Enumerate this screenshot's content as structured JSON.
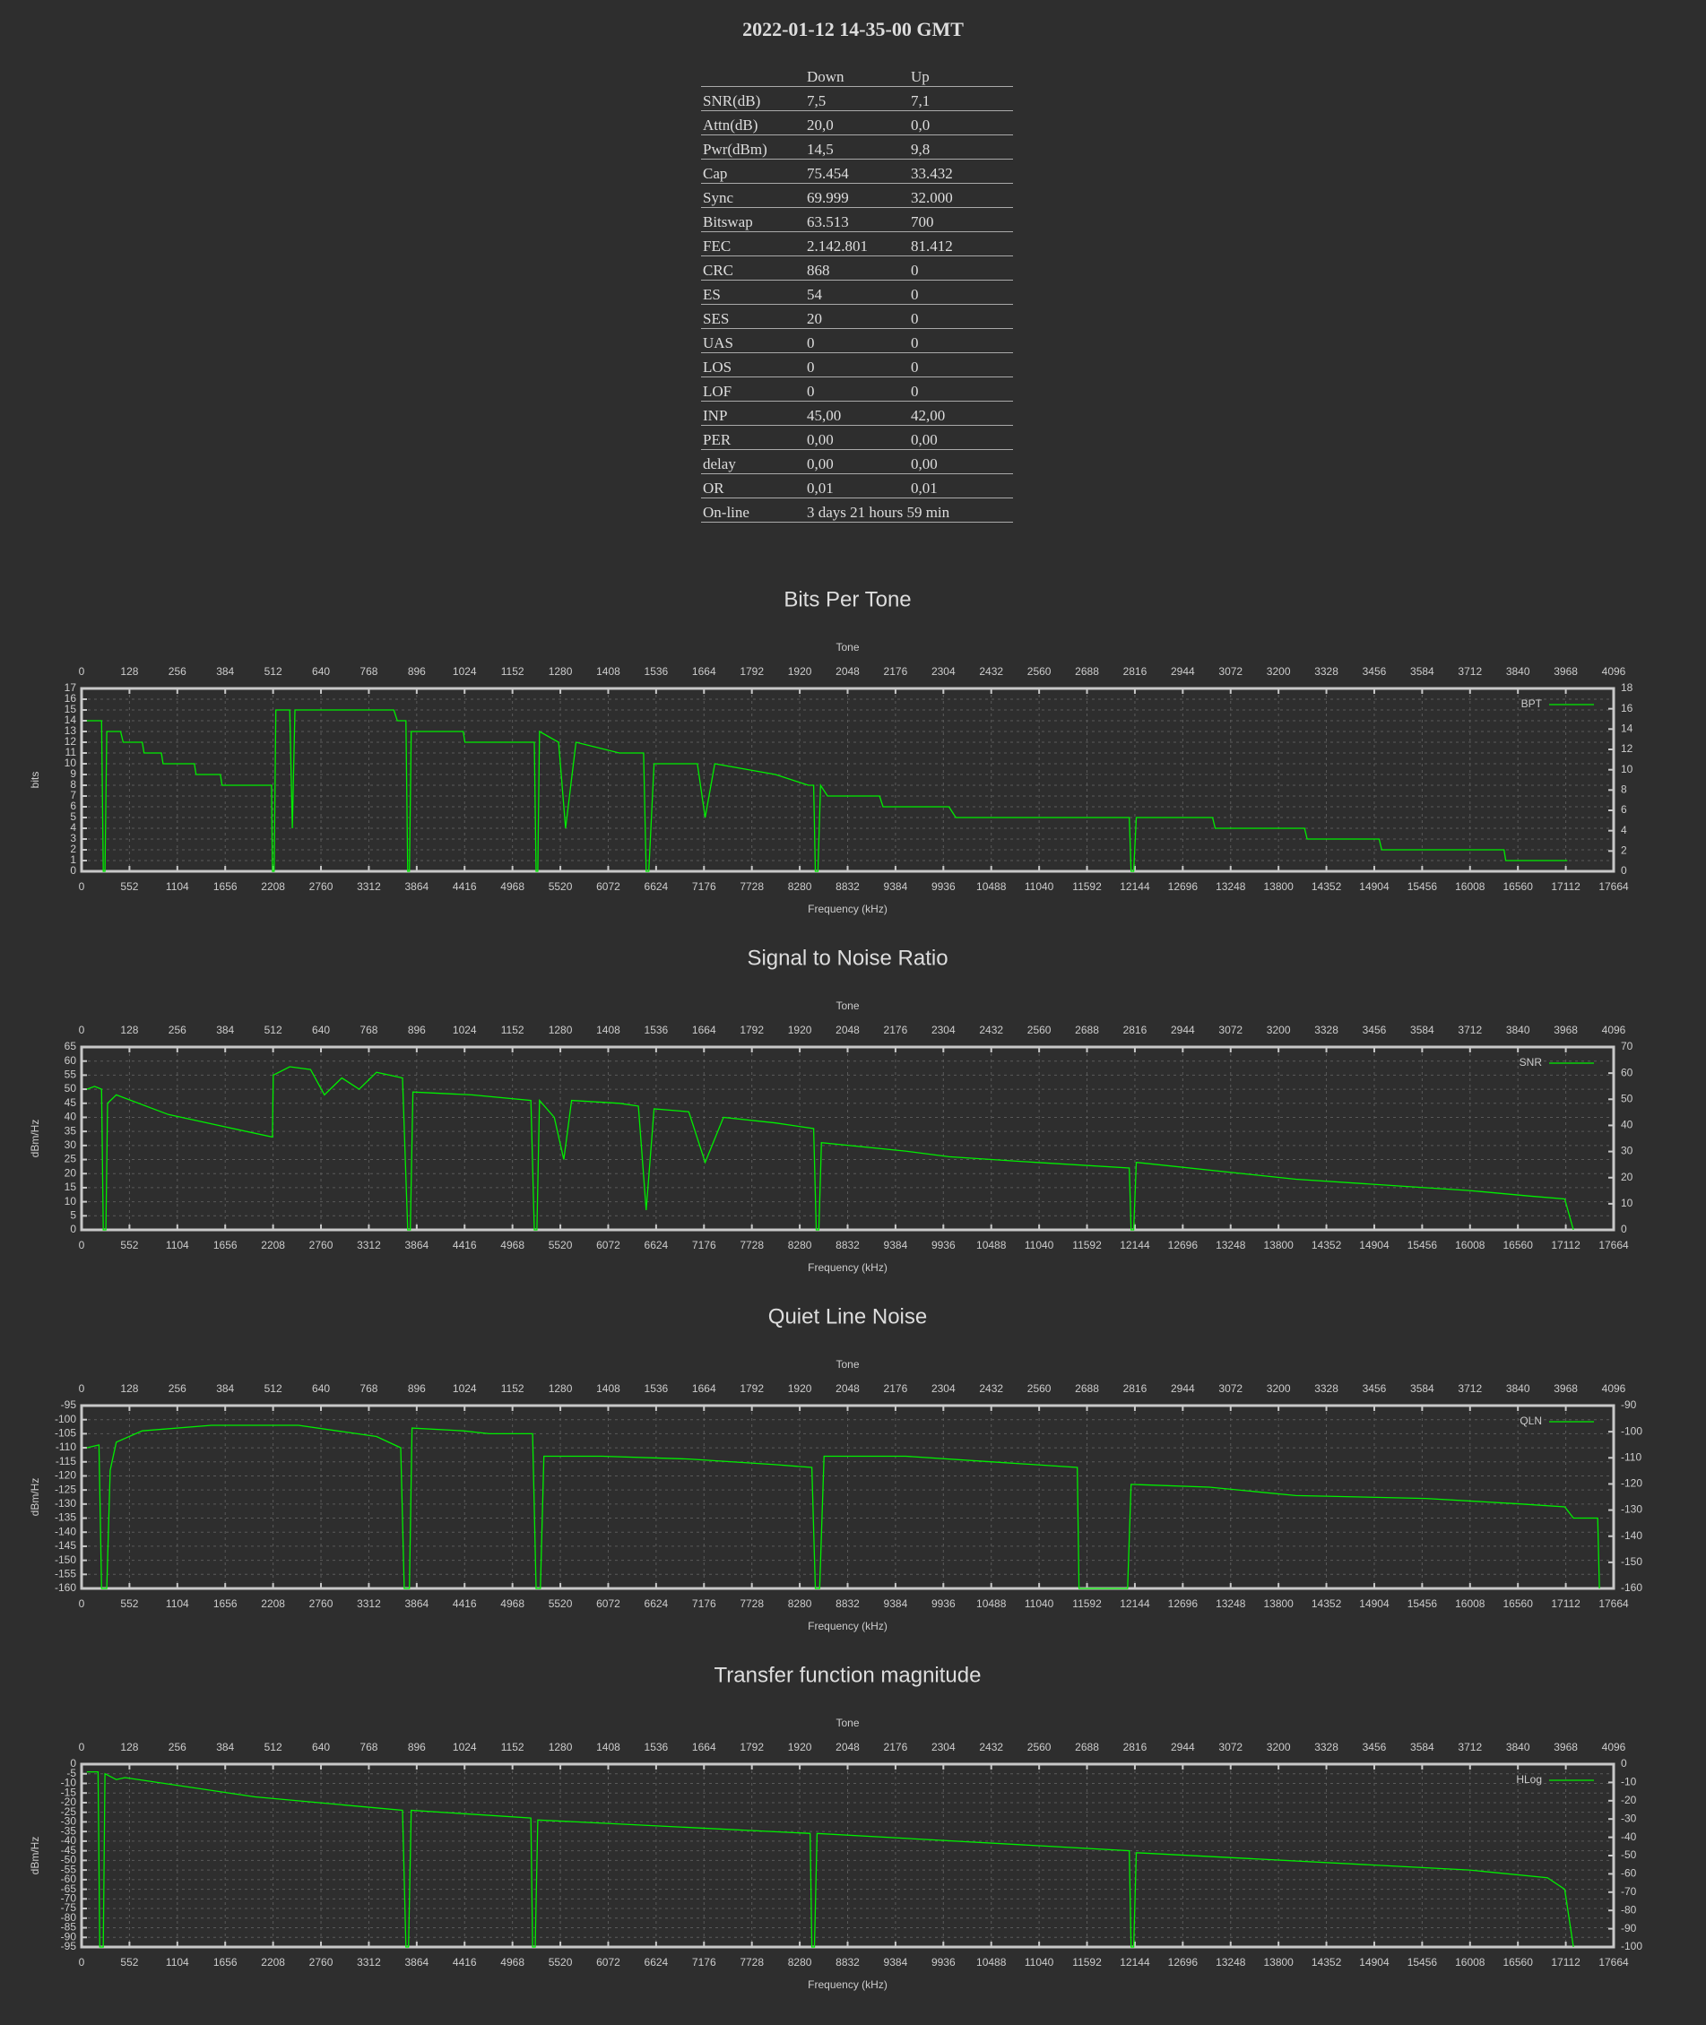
{
  "title": "2022-01-12 14-35-00 GMT",
  "table": {
    "columns": [
      "Down",
      "Up"
    ],
    "rows": [
      [
        "SNR(dB)",
        "7,5",
        "7,1"
      ],
      [
        "Attn(dB)",
        "20,0",
        "0,0"
      ],
      [
        "Pwr(dBm)",
        "14,5",
        "9,8"
      ],
      [
        "Cap",
        "75.454",
        "33.432"
      ],
      [
        "Sync",
        "69.999",
        "32.000"
      ],
      [
        "Bitswap",
        "63.513",
        "700"
      ],
      [
        "FEC",
        "2.142.801",
        "81.412"
      ],
      [
        "CRC",
        "868",
        "0"
      ],
      [
        "ES",
        "54",
        "0"
      ],
      [
        "SES",
        "20",
        "0"
      ],
      [
        "UAS",
        "0",
        "0"
      ],
      [
        "LOS",
        "0",
        "0"
      ],
      [
        "LOF",
        "0",
        "0"
      ],
      [
        "INP",
        "45,00",
        "42,00"
      ],
      [
        "PER",
        "0,00",
        "0,00"
      ],
      [
        "delay",
        "0,00",
        "0,00"
      ],
      [
        "OR",
        "0,01",
        "0,01"
      ],
      [
        "On-line",
        "3 days 21 hours 59 min"
      ]
    ]
  },
  "chart_data": [
    {
      "type": "line",
      "title": "Bits Per Tone",
      "x2label": "Tone",
      "xlabel": "Frequency (kHz)",
      "ylabel": "bits",
      "grid": true,
      "legend": "upper right",
      "xlim": [
        0,
        17664
      ],
      "xticks": [
        0,
        552,
        1104,
        1656,
        2208,
        2760,
        3312,
        3864,
        4416,
        4968,
        5520,
        6072,
        6624,
        7176,
        7728,
        8280,
        8832,
        9384,
        9936,
        10488,
        11040,
        11592,
        12144,
        12696,
        13248,
        13800,
        14352,
        14904,
        15456,
        16008,
        16560,
        17112,
        17664
      ],
      "x2lim": [
        0,
        4096
      ],
      "x2ticks": [
        0,
        128,
        256,
        384,
        512,
        640,
        768,
        896,
        1024,
        1152,
        1280,
        1408,
        1536,
        1664,
        1792,
        1920,
        2048,
        2176,
        2304,
        2432,
        2560,
        2688,
        2816,
        2944,
        3072,
        3200,
        3328,
        3456,
        3584,
        3712,
        3840,
        3968,
        4096
      ],
      "ylim": [
        0,
        17
      ],
      "yticks": [
        0,
        1,
        2,
        3,
        4,
        5,
        6,
        7,
        8,
        9,
        10,
        11,
        12,
        13,
        14,
        15,
        16,
        17
      ],
      "y2lim": [
        0,
        18
      ],
      "y2ticks": [
        0,
        2,
        4,
        6,
        8,
        10,
        12,
        14,
        16,
        18
      ],
      "x": [
        60,
        230,
        250,
        270,
        290,
        450,
        480,
        700,
        720,
        920,
        940,
        1300,
        1320,
        1600,
        1620,
        2190,
        2200,
        2220,
        2240,
        2400,
        2430,
        2460,
        3600,
        3640,
        3740,
        3760,
        3780,
        3800,
        4400,
        4420,
        5220,
        5240,
        5260,
        5280,
        5500,
        5580,
        5700,
        6200,
        6480,
        6510,
        6540,
        6600,
        7100,
        7190,
        7300,
        8000,
        8380,
        8440,
        8460,
        8490,
        8520,
        8600,
        9200,
        9240,
        10000,
        10080,
        12080,
        12100,
        12130,
        12160,
        13040,
        13070,
        14100,
        14130,
        14960,
        14990,
        16400,
        16420,
        17130
      ],
      "series": [
        {
          "name": "BPT",
          "color": "#00ee00",
          "values": [
            14,
            14,
            0,
            0,
            13,
            13,
            12,
            12,
            11,
            11,
            10,
            10,
            9,
            9,
            8,
            8,
            0,
            0,
            15,
            15,
            4,
            15,
            15,
            14,
            14,
            0,
            0,
            13,
            13,
            12,
            12,
            0,
            0,
            13,
            12,
            4,
            12,
            11,
            11,
            0,
            0,
            10,
            10,
            5,
            10,
            9,
            8,
            8,
            0,
            0,
            8,
            7,
            7,
            6,
            6,
            5,
            5,
            0,
            0,
            5,
            5,
            4,
            4,
            3,
            3,
            2,
            2,
            1,
            1
          ]
        }
      ]
    },
    {
      "type": "line",
      "title": "Signal to Noise Ratio",
      "x2label": "Tone",
      "xlabel": "Frequency (kHz)",
      "ylabel": "dBm/Hz",
      "grid": true,
      "legend": "upper right",
      "xlim": [
        0,
        17664
      ],
      "xticks": [
        0,
        552,
        1104,
        1656,
        2208,
        2760,
        3312,
        3864,
        4416,
        4968,
        5520,
        6072,
        6624,
        7176,
        7728,
        8280,
        8832,
        9384,
        9936,
        10488,
        11040,
        11592,
        12144,
        12696,
        13248,
        13800,
        14352,
        14904,
        15456,
        16008,
        16560,
        17112,
        17664
      ],
      "x2lim": [
        0,
        4096
      ],
      "x2ticks": [
        0,
        128,
        256,
        384,
        512,
        640,
        768,
        896,
        1024,
        1152,
        1280,
        1408,
        1536,
        1664,
        1792,
        1920,
        2048,
        2176,
        2304,
        2432,
        2560,
        2688,
        2816,
        2944,
        3072,
        3200,
        3328,
        3456,
        3584,
        3712,
        3840,
        3968,
        4096
      ],
      "ylim": [
        0,
        65
      ],
      "yticks": [
        0,
        5,
        10,
        15,
        20,
        25,
        30,
        35,
        40,
        45,
        50,
        55,
        60,
        65
      ],
      "y2lim": [
        0,
        70
      ],
      "y2ticks": [
        0,
        10,
        20,
        30,
        40,
        50,
        60,
        70
      ],
      "x": [
        60,
        150,
        230,
        250,
        280,
        300,
        400,
        1000,
        1600,
        2200,
        2210,
        2400,
        2640,
        2800,
        3000,
        3200,
        3400,
        3700,
        3760,
        3790,
        3820,
        4500,
        5180,
        5220,
        5250,
        5280,
        5450,
        5560,
        5650,
        6200,
        6420,
        6510,
        6600,
        7000,
        7190,
        7400,
        8000,
        8440,
        8470,
        8500,
        8530,
        9500,
        10000,
        11000,
        12080,
        12100,
        12130,
        12160,
        14000,
        16000,
        16700,
        17100,
        17200
      ],
      "series": [
        {
          "name": "SNR",
          "color": "#00ee00",
          "values": [
            50,
            51,
            50,
            0,
            0,
            45,
            48,
            41,
            37,
            33,
            55,
            58,
            57,
            48,
            54,
            50,
            56,
            54,
            0,
            0,
            49,
            48,
            46,
            0,
            0,
            46,
            40,
            25,
            46,
            45,
            44,
            7,
            43,
            42,
            24,
            40,
            38,
            36,
            0,
            0,
            31,
            28,
            26,
            24,
            22,
            0,
            0,
            24,
            18,
            14,
            12,
            11,
            0
          ]
        }
      ]
    },
    {
      "type": "line",
      "title": "Quiet Line Noise",
      "x2label": "Tone",
      "xlabel": "Frequency (kHz)",
      "ylabel": "dBm/Hz",
      "grid": true,
      "legend": "upper right",
      "xlim": [
        0,
        17664
      ],
      "xticks": [
        0,
        552,
        1104,
        1656,
        2208,
        2760,
        3312,
        3864,
        4416,
        4968,
        5520,
        6072,
        6624,
        7176,
        7728,
        8280,
        8832,
        9384,
        9936,
        10488,
        11040,
        11592,
        12144,
        12696,
        13248,
        13800,
        14352,
        14904,
        15456,
        16008,
        16560,
        17112,
        17664
      ],
      "x2lim": [
        0,
        4096
      ],
      "x2ticks": [
        0,
        128,
        256,
        384,
        512,
        640,
        768,
        896,
        1024,
        1152,
        1280,
        1408,
        1536,
        1664,
        1792,
        1920,
        2048,
        2176,
        2304,
        2432,
        2560,
        2688,
        2816,
        2944,
        3072,
        3200,
        3328,
        3456,
        3584,
        3712,
        3840,
        3968,
        4096
      ],
      "ylim": [
        -160,
        -95
      ],
      "yticks": [
        -160,
        -155,
        -150,
        -145,
        -140,
        -135,
        -130,
        -125,
        -120,
        -115,
        -110,
        -105,
        -100,
        -95
      ],
      "y2lim": [
        -160,
        -90
      ],
      "y2ticks": [
        -160,
        -150,
        -140,
        -130,
        -120,
        -110,
        -100,
        -90
      ],
      "x": [
        60,
        200,
        230,
        290,
        330,
        400,
        700,
        1500,
        2500,
        3400,
        3680,
        3720,
        3780,
        3810,
        4400,
        4700,
        5200,
        5240,
        5290,
        5330,
        6000,
        7000,
        8000,
        8420,
        8460,
        8510,
        8560,
        9500,
        10500,
        11480,
        11500,
        12060,
        12100,
        13000,
        14000,
        15500,
        16600,
        17100,
        17200,
        17480,
        17500
      ],
      "series": [
        {
          "name": "QLN",
          "color": "#00ee00",
          "values": [
            -110,
            -109,
            -160,
            -160,
            -118,
            -108,
            -104,
            -102,
            -102,
            -106,
            -110,
            -160,
            -160,
            -103,
            -104,
            -105,
            -105,
            -160,
            -160,
            -113,
            -113,
            -114,
            -116,
            -117,
            -160,
            -160,
            -113,
            -113,
            -115,
            -117,
            -160,
            -160,
            -123,
            -124,
            -127,
            -128,
            -130,
            -131,
            -135,
            -135,
            -160
          ]
        }
      ]
    },
    {
      "type": "line",
      "title": "Transfer function magnitude",
      "x2label": "Tone",
      "xlabel": "Frequency (kHz)",
      "ylabel": "dBm/Hz",
      "grid": true,
      "legend": "upper right",
      "xlim": [
        0,
        17664
      ],
      "xticks": [
        0,
        552,
        1104,
        1656,
        2208,
        2760,
        3312,
        3864,
        4416,
        4968,
        5520,
        6072,
        6624,
        7176,
        7728,
        8280,
        8832,
        9384,
        9936,
        10488,
        11040,
        11592,
        12144,
        12696,
        13248,
        13800,
        14352,
        14904,
        15456,
        16008,
        16560,
        17112,
        17664
      ],
      "x2lim": [
        0,
        4096
      ],
      "x2ticks": [
        0,
        128,
        256,
        384,
        512,
        640,
        768,
        896,
        1024,
        1152,
        1280,
        1408,
        1536,
        1664,
        1792,
        1920,
        2048,
        2176,
        2304,
        2432,
        2560,
        2688,
        2816,
        2944,
        3072,
        3200,
        3328,
        3456,
        3584,
        3712,
        3840,
        3968,
        4096
      ],
      "ylim": [
        -95,
        0
      ],
      "yticks": [
        -95,
        -90,
        -85,
        -80,
        -75,
        -70,
        -65,
        -60,
        -55,
        -50,
        -45,
        -40,
        -35,
        -30,
        -25,
        -20,
        -15,
        -10,
        -5,
        0
      ],
      "y2lim": [
        -100,
        0
      ],
      "y2ticks": [
        -100,
        -90,
        -80,
        -70,
        -60,
        -50,
        -40,
        -30,
        -20,
        -10,
        0
      ],
      "x": [
        60,
        190,
        210,
        250,
        270,
        400,
        500,
        2000,
        3700,
        3740,
        3770,
        3800,
        5180,
        5200,
        5230,
        5260,
        8400,
        8420,
        8450,
        8480,
        12080,
        12100,
        12130,
        12160,
        16000,
        16900,
        17100,
        17200
      ],
      "series": [
        {
          "name": "HLog",
          "color": "#00ee00",
          "values": [
            -4,
            -4,
            -95,
            -95,
            -5,
            -8,
            -7,
            -17,
            -24,
            -95,
            -95,
            -24,
            -28,
            -95,
            -95,
            -29,
            -36,
            -95,
            -95,
            -36,
            -45,
            -95,
            -95,
            -46,
            -55,
            -59,
            -65,
            -95
          ]
        }
      ]
    }
  ]
}
